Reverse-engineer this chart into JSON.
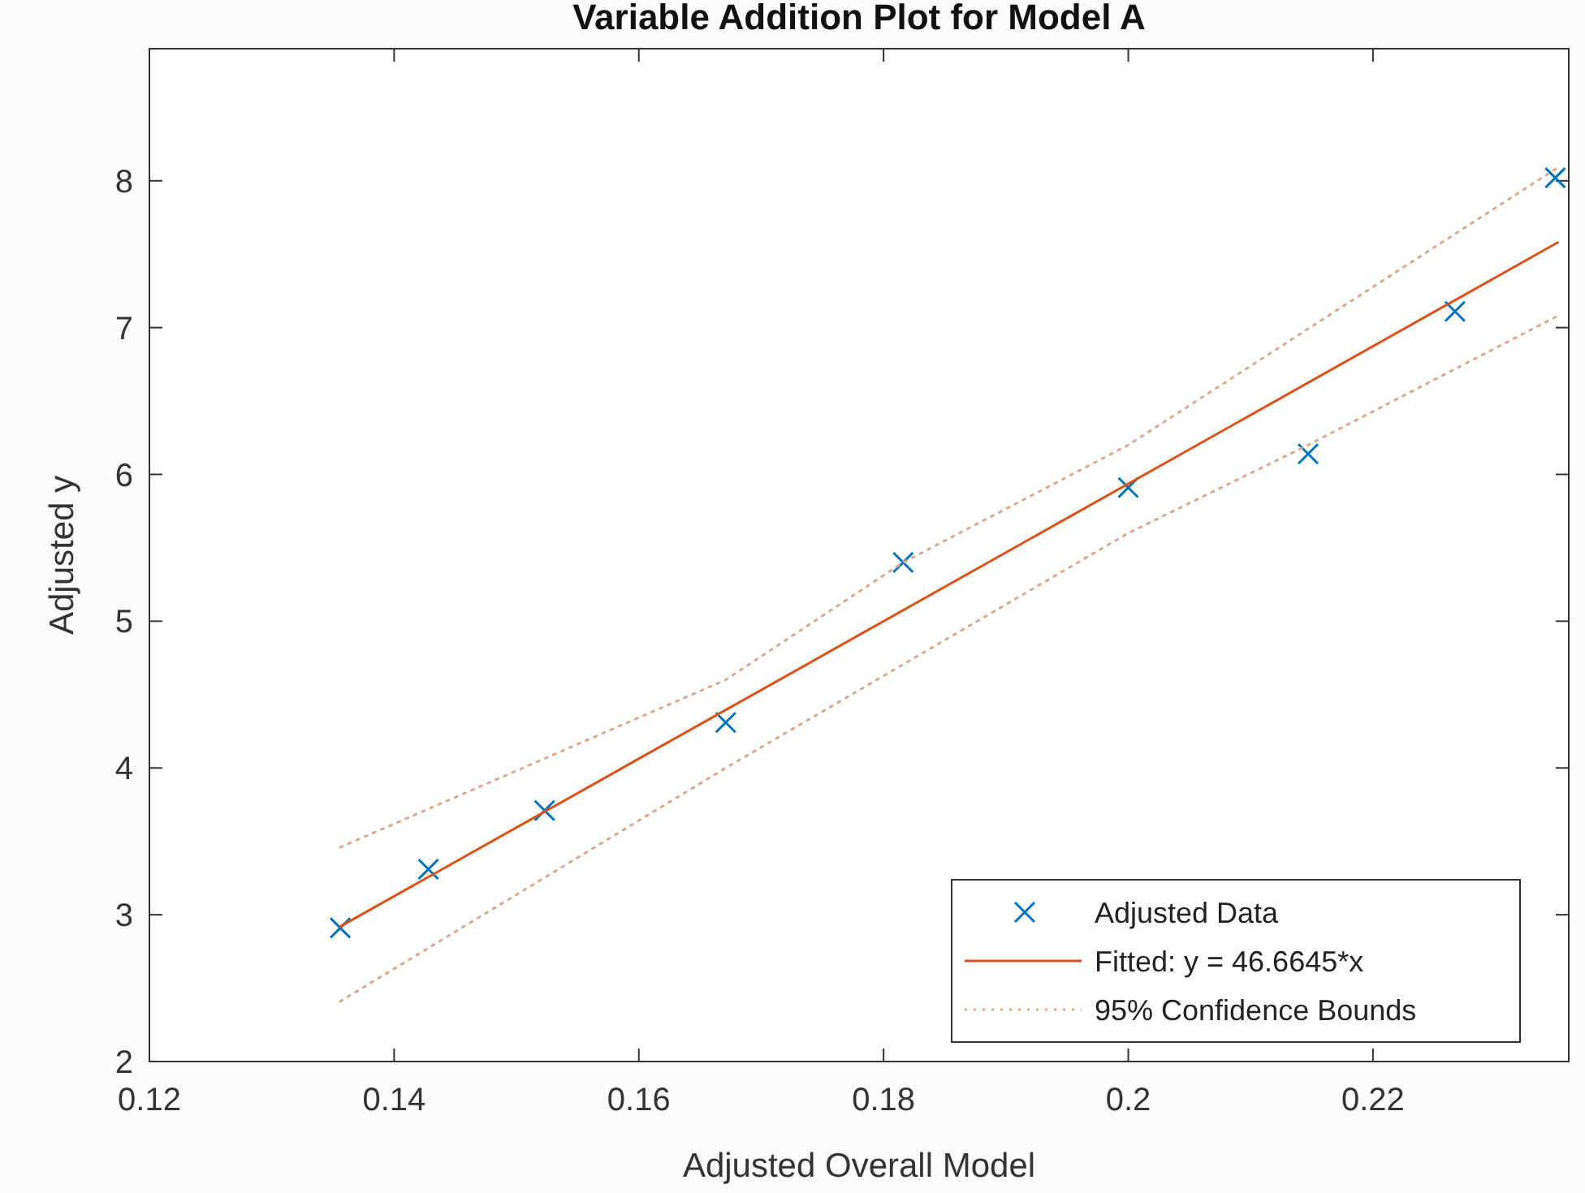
{
  "chart_data": {
    "type": "scatter",
    "title": "Variable Addition Plot for Model A",
    "xlabel": "Adjusted Overall Model",
    "ylabel": "Adjusted y",
    "xlim": [
      0.12,
      0.236
    ],
    "ylim": [
      2,
      8.9
    ],
    "xticks": [
      0.12,
      0.14,
      0.16,
      0.18,
      {
        "value": 0.2,
        "label": "0.2"
      },
      0.22
    ],
    "yticks": [
      2,
      3,
      4,
      5,
      6,
      7,
      8
    ],
    "grid": false,
    "legend": "bottom right",
    "series": [
      {
        "name": "Adjusted Data",
        "type": "scatter",
        "marker": "cross",
        "color": "#0072bd",
        "x": [
          0.1356,
          0.1428,
          0.1523,
          0.1671,
          0.1816,
          0.2,
          0.2147,
          0.2267,
          0.2349
        ],
        "values": [
          2.91,
          3.31,
          3.71,
          4.31,
          5.4,
          5.91,
          6.14,
          7.11,
          8.02
        ]
      },
      {
        "name": "Fitted: y = 46.6645*x",
        "type": "line",
        "marker": "none",
        "line_style": "solid",
        "color": "#d95319",
        "x": [
          0.1356,
          0.2351
        ],
        "values": [
          2.92,
          7.58
        ]
      },
      {
        "name": "95% Confidence Bounds",
        "type": "line",
        "marker": "none",
        "line_style": "dotted",
        "color": "#d9a88f",
        "x": [
          0.1356,
          0.1671,
          0.1816,
          0.2,
          0.2351
        ],
        "values": [
          3.46,
          4.6,
          5.4,
          6.2,
          8.09
        ]
      },
      {
        "type": "line",
        "marker": "none",
        "line_style": "dotted",
        "color": "#d9a88f",
        "x": [
          0.1356,
          0.1671,
          0.2,
          0.2147,
          0.2351
        ],
        "values": [
          2.41,
          4.0,
          5.6,
          6.2,
          7.08
        ]
      }
    ]
  }
}
